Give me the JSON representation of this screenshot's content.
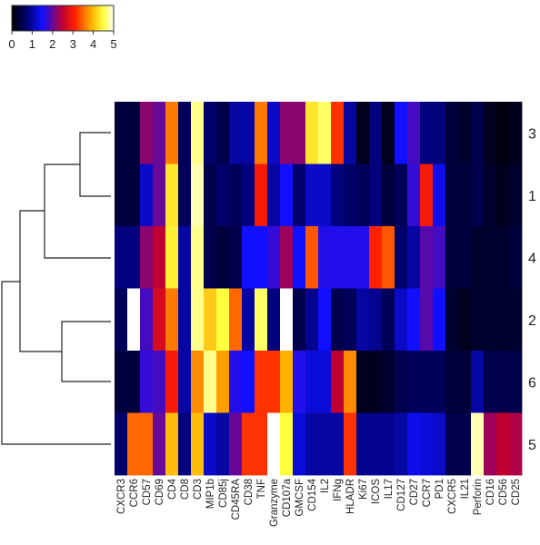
{
  "chart_data": {
    "type": "heatmap",
    "title": "",
    "xlabel": "",
    "ylabel": "",
    "columns": [
      "CXCR3",
      "CCR6",
      "CD57",
      "CD69",
      "CD4",
      "CD8",
      "CD3",
      "MIP1b",
      "CD85j",
      "CD45RA",
      "CD38",
      "TNF",
      "Granzyme",
      "CD107a",
      "GMCSF",
      "CD154",
      "IL2",
      "IFNg",
      "HLADR",
      "Ki67",
      "ICOS",
      "IL17",
      "CD127",
      "CD27",
      "CCR7",
      "PD1",
      "CXCR5",
      "IL21",
      "Perforin",
      "CD16",
      "CD56",
      "CD25"
    ],
    "rows": [
      "3",
      "1",
      "4",
      "2",
      "6",
      "5"
    ],
    "values": [
      [
        0.4,
        0.4,
        2.2,
        2.0,
        3.6,
        0.6,
        4.7,
        0.7,
        0.5,
        1.0,
        1.0,
        3.6,
        1.2,
        2.2,
        2.2,
        4.3,
        4.6,
        3.2,
        1.0,
        0.2,
        0.8,
        0.2,
        1.5,
        1.8,
        0.8,
        0.8,
        0.4,
        0.3,
        0.5,
        0.2,
        0.1,
        0.2
      ],
      [
        0.4,
        0.4,
        1.2,
        2.0,
        4.3,
        0.6,
        4.8,
        0.5,
        0.7,
        0.6,
        0.8,
        3.0,
        1.0,
        1.5,
        0.7,
        1.2,
        1.2,
        0.8,
        0.7,
        0.6,
        0.8,
        0.4,
        0.6,
        1.7,
        3.0,
        1.4,
        0.4,
        0.4,
        0.5,
        0.3,
        0.2,
        0.3
      ],
      [
        0.8,
        0.8,
        2.2,
        2.5,
        4.4,
        1.0,
        4.7,
        0.5,
        0.4,
        0.5,
        1.5,
        1.5,
        1.7,
        2.3,
        1.5,
        3.4,
        1.6,
        1.6,
        1.6,
        1.6,
        3.1,
        3.4,
        0.7,
        1.0,
        1.9,
        1.8,
        0.4,
        0.4,
        0.3,
        0.3,
        0.3,
        0.4
      ],
      [
        0.6,
        5.0,
        1.8,
        2.7,
        3.6,
        1.0,
        4.7,
        4.1,
        4.5,
        3.5,
        1.0,
        4.6,
        0.8,
        5.0,
        0.5,
        0.9,
        1.5,
        0.5,
        0.6,
        1.0,
        0.9,
        0.6,
        1.2,
        1.5,
        1.9,
        1.5,
        0.3,
        0.2,
        0.3,
        0.3,
        0.3,
        0.3
      ],
      [
        0.4,
        0.4,
        1.7,
        1.8,
        3.0,
        1.0,
        3.7,
        4.7,
        3.8,
        1.6,
        1.5,
        3.2,
        3.2,
        3.9,
        1.6,
        1.3,
        1.3,
        2.5,
        3.7,
        0.2,
        0.2,
        0.3,
        0.5,
        0.6,
        0.6,
        0.6,
        0.4,
        0.4,
        1.0,
        0.5,
        0.5,
        0.5
      ],
      [
        0.7,
        3.5,
        3.5,
        2.0,
        4.0,
        0.8,
        4.0,
        1.2,
        1.0,
        2.0,
        3.2,
        3.2,
        5.0,
        4.5,
        1.3,
        1.0,
        1.0,
        1.0,
        3.2,
        0.9,
        0.9,
        0.9,
        1.0,
        1.4,
        1.3,
        1.2,
        0.5,
        0.5,
        4.8,
        2.3,
        2.5,
        2.4
      ]
    ],
    "scale": {
      "min": 0,
      "max": 5,
      "ticks": [
        "0",
        "1",
        "2",
        "3",
        "4",
        "5"
      ]
    },
    "dendrogram": "rows",
    "legend": "top-left color key",
    "colors": [
      "#000000",
      "#00008b",
      "#0000ff",
      "#ff0000",
      "#ffa500",
      "#ffff00",
      "#ffffff"
    ]
  }
}
